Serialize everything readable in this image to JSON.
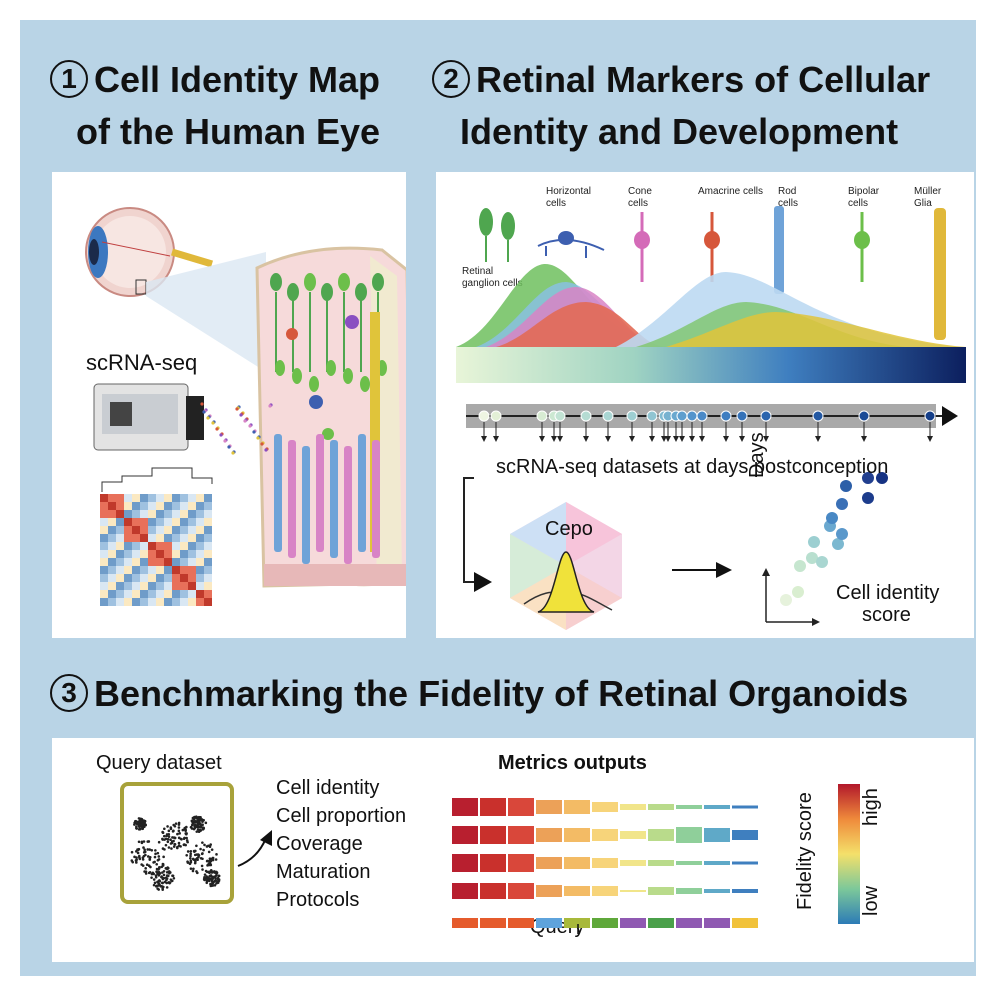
{
  "section1": {
    "number": "1",
    "title_line1": "Cell Identity Map",
    "title_line2": "of the Human Eye",
    "scrna_label": "scRNA-seq"
  },
  "section2": {
    "number": "2",
    "title_line1": "Retinal Markers of Cellular",
    "title_line2": "Identity and Development",
    "cell_types": [
      {
        "line1": "Retinal",
        "line2": "ganglion cells",
        "color": "#4fa64f"
      },
      {
        "line1": "Horizontal",
        "line2": "cells",
        "color": "#3d5fb0"
      },
      {
        "line1": "Cone",
        "line2": "cells",
        "color": "#d46bb8"
      },
      {
        "line1": "Amacrine cells",
        "line2": "",
        "color": "#d6573b"
      },
      {
        "line1": "Rod",
        "line2": "cells",
        "color": "#6fa3d8"
      },
      {
        "line1": "Bipolar",
        "line2": "cells",
        "color": "#6cbf4a"
      },
      {
        "line1": "Müller",
        "line2": "Glia",
        "color": "#e0b83a"
      }
    ],
    "datasets_label": "scRNA-seq datasets at days postconception",
    "cepo_label": "Cepo",
    "scatter_ylabel": "Days",
    "scatter_xlabel_line1": "Cell identity",
    "scatter_xlabel_line2": "score"
  },
  "section3": {
    "number": "3",
    "title": "Benchmarking the Fidelity of Retinal Organoids",
    "query_dataset_label": "Query dataset",
    "metrics_title": "Metrics outputs",
    "metrics": [
      "Cell identity",
      "Cell proportion",
      "Coverage",
      "Maturation",
      "Protocols"
    ],
    "query_label": "Query",
    "fidelity_label": "Fidelity score",
    "high_label": "high",
    "low_label": "low"
  }
}
